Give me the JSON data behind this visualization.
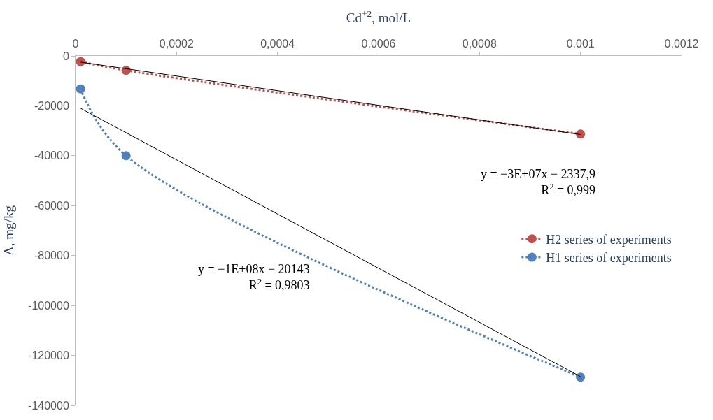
{
  "chart_data": {
    "type": "line",
    "xlabel": "Cd$^{+2}$, mol/L",
    "ylabel": "A, mg/kg",
    "xlim": [
      0,
      0.0012
    ],
    "xticks": [
      0,
      {
        "value": 0.0002,
        "label": "0,0002"
      },
      {
        "value": 0.0004,
        "label": "0,0004"
      },
      {
        "value": 0.0006,
        "label": "0,0006"
      },
      {
        "value": 0.0008,
        "label": "0,0008"
      },
      {
        "value": 0.001,
        "label": "0,001"
      },
      {
        "value": 0.0012,
        "label": "0,0012"
      }
    ],
    "ylim": [
      -140000,
      0
    ],
    "yticks": [
      0,
      -20000,
      -40000,
      -60000,
      -80000,
      -100000,
      -120000,
      -140000
    ],
    "grid": false,
    "legend": "right",
    "series": [
      {
        "name": "H2 series of experiments",
        "color": "#c0504d",
        "marker": "circle",
        "line_style": "dotted",
        "x": [
          1e-05,
          0.0001,
          0.001
        ],
        "values": [
          -2300,
          -5800,
          -31300
        ]
      },
      {
        "name": "H1 series of experiments",
        "color": "#4f81bd",
        "marker": "circle",
        "line_style": "dotted",
        "x": [
          1e-05,
          0.0001,
          0.001
        ],
        "values": [
          -13200,
          -40000,
          -128700
        ]
      },
      {
        "color": "#000000",
        "type": "line",
        "marker": "none",
        "line_style": "solid",
        "x": [
          1e-05,
          0.001
        ],
        "values": [
          -2500,
          -31500
        ]
      },
      {
        "color": "#000000",
        "type": "line",
        "marker": "none",
        "line_style": "solid",
        "x": [
          1e-05,
          0.001
        ],
        "values": [
          -21000,
          -128500
        ]
      }
    ],
    "annotations": [
      "y = −3E+07x − 2337,9\nR$^{2}$ = 0,999",
      "y = −1E+08x − 20143\nR$^{2}$ = 0,9803"
    ]
  }
}
